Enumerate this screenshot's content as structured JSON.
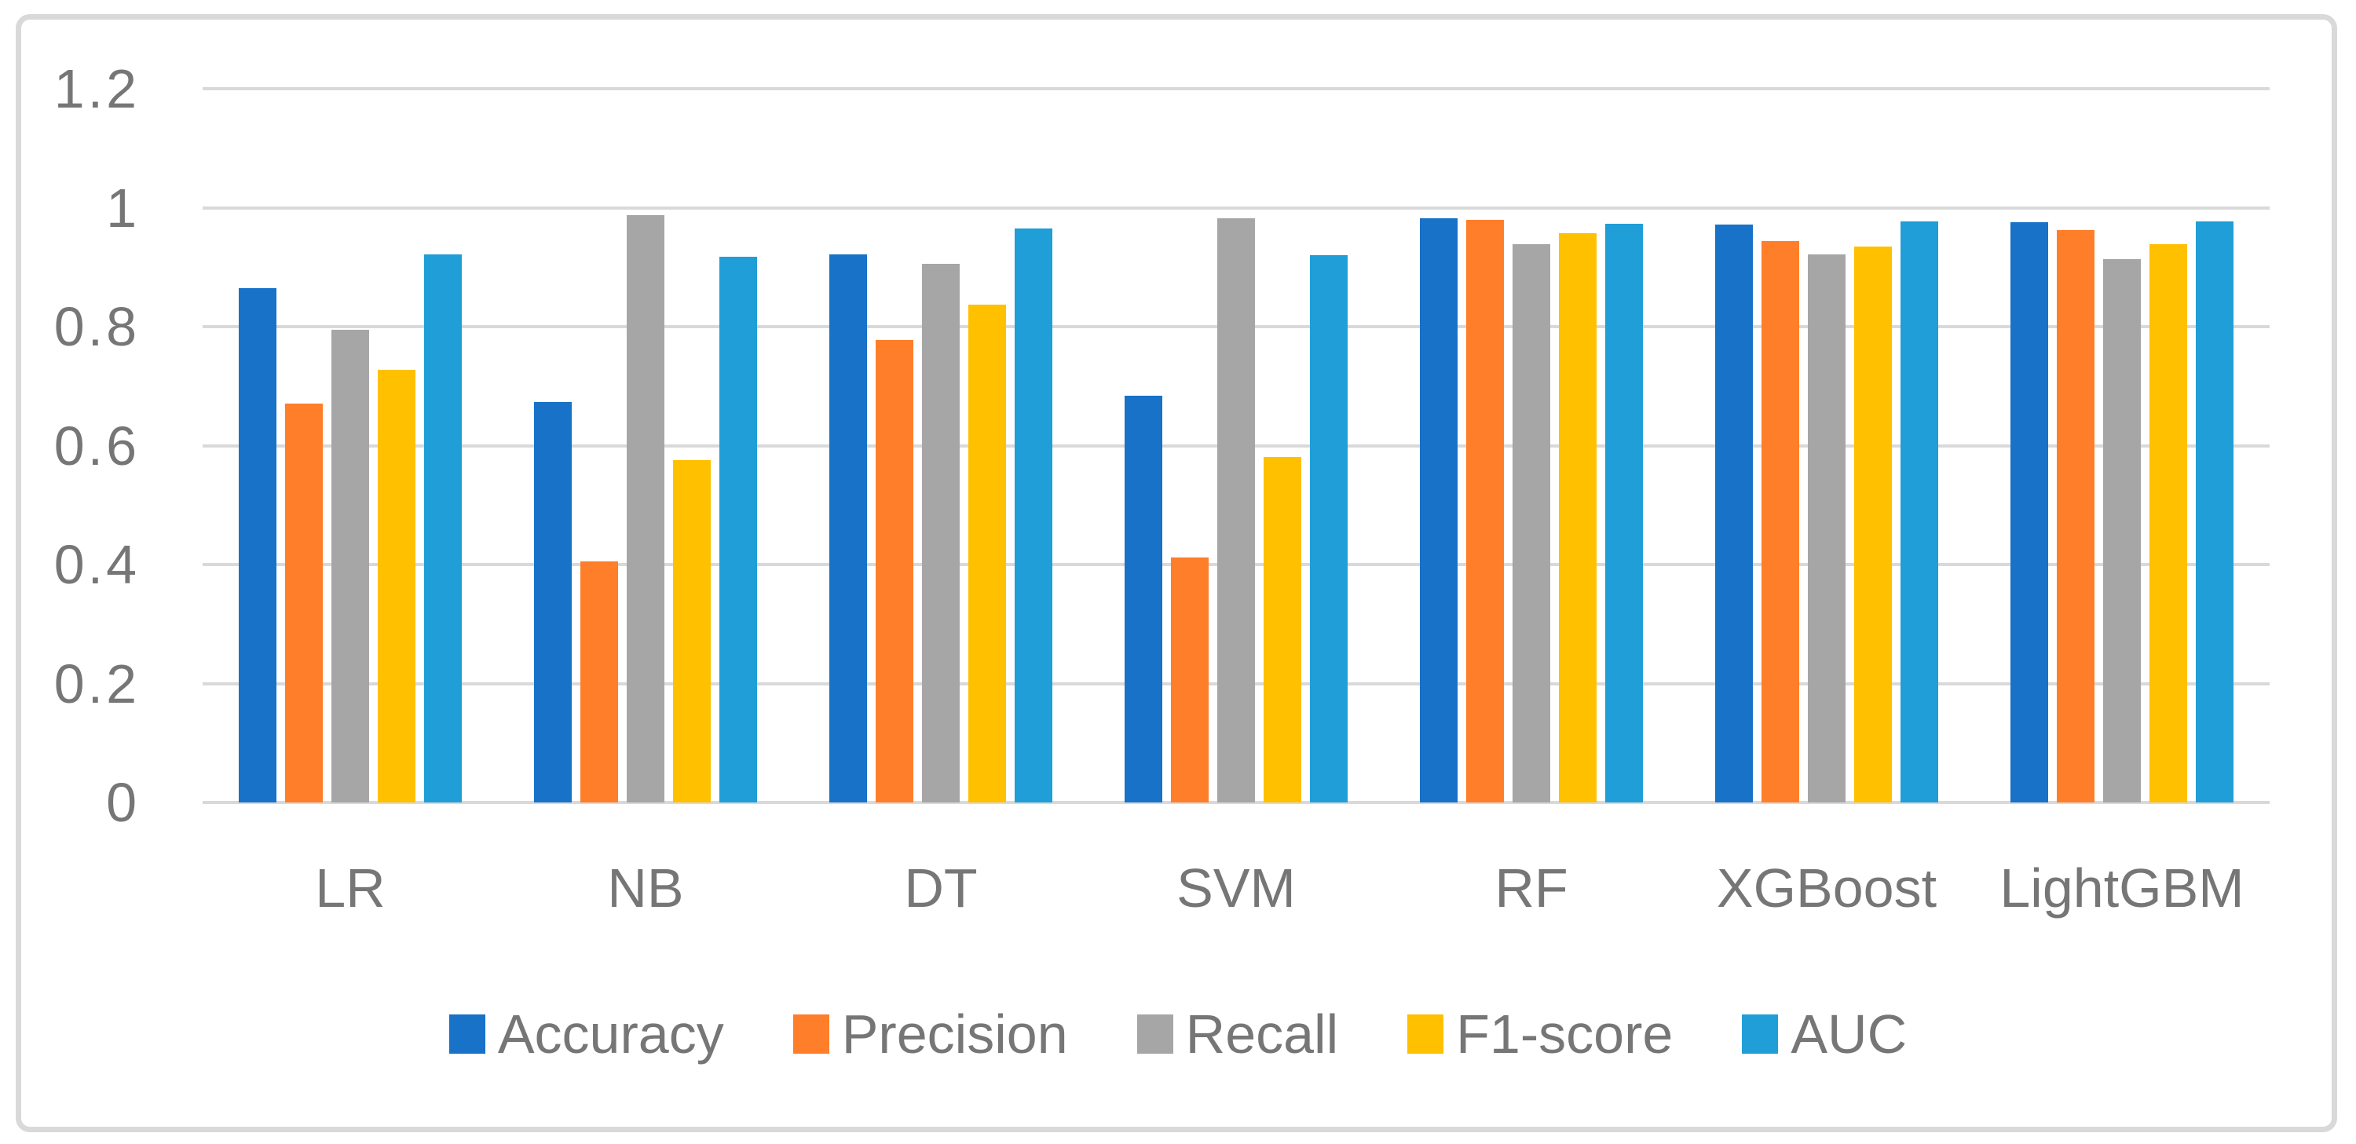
{
  "figure": {
    "background_color": "#ffffff",
    "border_color": "#d9d9d9",
    "gridline_color": "#d9d9d9",
    "text_color": "#767676"
  },
  "chart_data": {
    "type": "bar",
    "title": "",
    "xlabel": "",
    "ylabel": "",
    "grid": true,
    "legend_position": "bottom",
    "ylim": [
      0,
      1.2
    ],
    "yticks": [
      {
        "label": "0",
        "value": 0
      },
      {
        "label": "0.2",
        "value": 0.2
      },
      {
        "label": "0.4",
        "value": 0.4
      },
      {
        "label": "0.6",
        "value": 0.6
      },
      {
        "label": "0.8",
        "value": 0.8
      },
      {
        "label": "1",
        "value": 1.0
      },
      {
        "label": "1.2",
        "value": 1.2
      }
    ],
    "categories": [
      "LR",
      "NB",
      "DT",
      "SVM",
      "RF",
      "XGBoost",
      "LightGBM"
    ],
    "series": [
      {
        "name": "Accuracy",
        "color": "#1772c8",
        "values": [
          0.865,
          0.673,
          0.921,
          0.684,
          0.982,
          0.972,
          0.975
        ]
      },
      {
        "name": "Precision",
        "color": "#ff7e29",
        "values": [
          0.67,
          0.405,
          0.777,
          0.412,
          0.979,
          0.944,
          0.963
        ]
      },
      {
        "name": "Recall",
        "color": "#a6a6a6",
        "values": [
          0.795,
          0.987,
          0.906,
          0.982,
          0.938,
          0.922,
          0.914
        ]
      },
      {
        "name": "F1-score",
        "color": "#ffc000",
        "values": [
          0.727,
          0.576,
          0.837,
          0.581,
          0.957,
          0.935,
          0.938
        ]
      },
      {
        "name": "AUC",
        "color": "#1f9ed8",
        "values": [
          0.921,
          0.918,
          0.965,
          0.92,
          0.973,
          0.977,
          0.977
        ]
      }
    ]
  }
}
